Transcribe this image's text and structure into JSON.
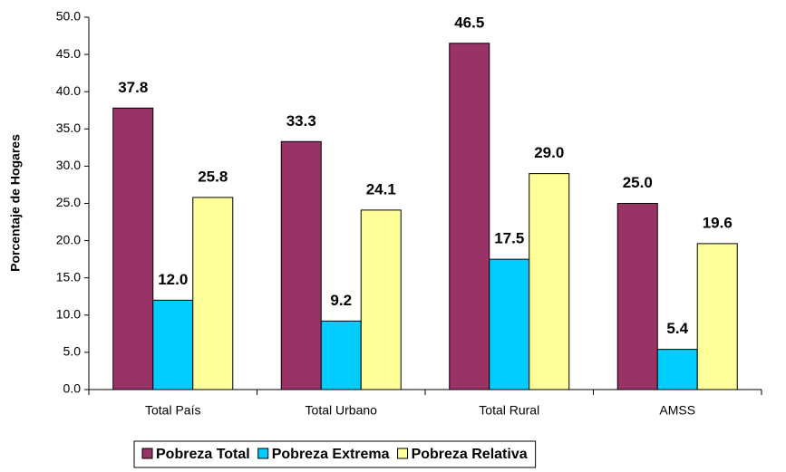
{
  "chart_data": {
    "type": "bar",
    "y_label": "Porcentaje de Hogares",
    "categories": [
      "Total País",
      "Total Urbano",
      "Total Rural",
      "AMSS"
    ],
    "series": [
      {
        "name": "Pobreza Total",
        "color": "#993366",
        "values": [
          37.8,
          33.3,
          46.5,
          25
        ],
        "value_labels": [
          "37.8",
          "33.3",
          "46.5",
          "25.0"
        ]
      },
      {
        "name": "Pobreza Extrema",
        "color": "#00ccff",
        "values": [
          12,
          9.2,
          17.5,
          5.4
        ],
        "value_labels": [
          "12.0",
          "9.2",
          "17.5",
          "5.4"
        ]
      },
      {
        "name": "Pobreza Relativa",
        "color": "#ffff99",
        "values": [
          25.8,
          24.1,
          29,
          19.6
        ],
        "value_labels": [
          "25.8",
          "24.1",
          "29.0",
          "19.6"
        ]
      }
    ],
    "ylim": [
      0,
      50
    ],
    "yticks": [
      {
        "value": 0,
        "label": "0.0"
      },
      {
        "value": 5,
        "label": "5.0"
      },
      {
        "value": 10,
        "label": "10.0"
      },
      {
        "value": 15,
        "label": "15.0"
      },
      {
        "value": 20,
        "label": "20.0"
      },
      {
        "value": 25,
        "label": "25.0"
      },
      {
        "value": 30,
        "label": "30.0"
      },
      {
        "value": 35,
        "label": "35.0"
      },
      {
        "value": 40,
        "label": "40.0"
      },
      {
        "value": 45,
        "label": "45.0"
      },
      {
        "value": 50,
        "label": "50.0"
      }
    ],
    "legend": "bottom"
  }
}
